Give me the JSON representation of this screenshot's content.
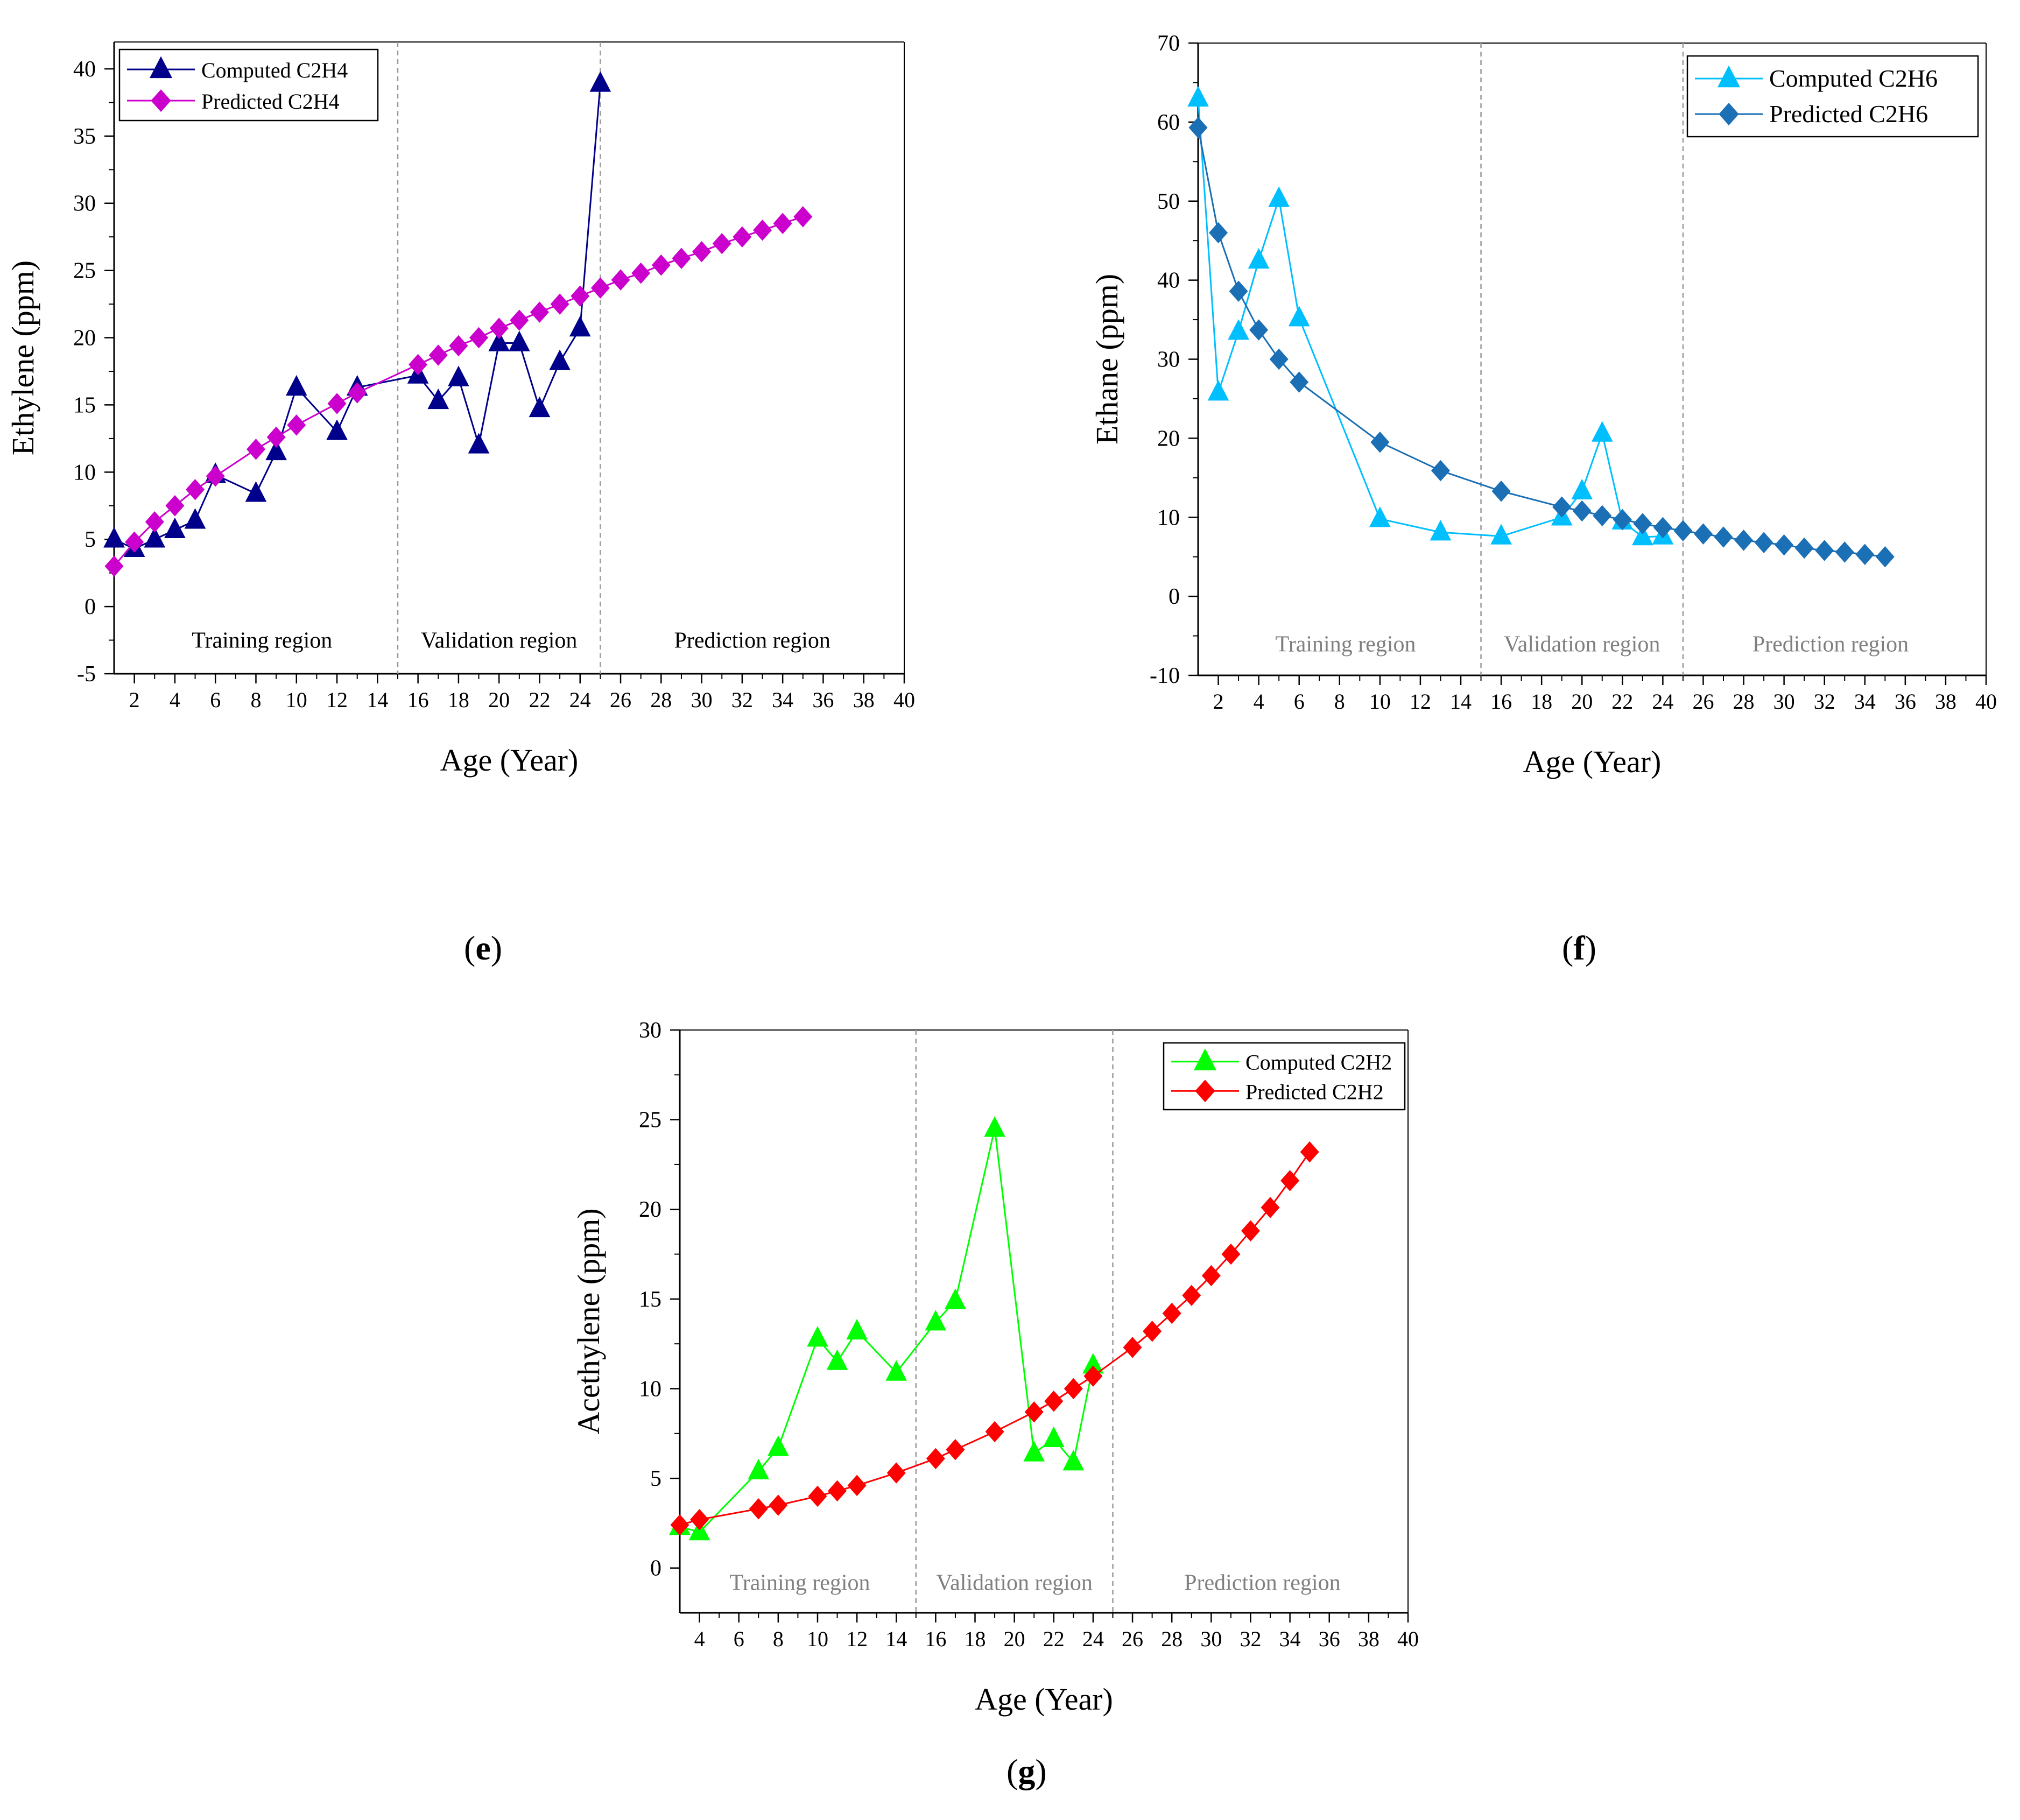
{
  "panel_labels": [
    "e",
    "f",
    "g"
  ],
  "chart_data": [
    {
      "type": "line",
      "panel": "e",
      "xlabel": "Age (Year)",
      "ylabel": "Ethylene (ppm)",
      "xlim": [
        1,
        40
      ],
      "ylim": [
        -5,
        42
      ],
      "xticks": [
        2,
        4,
        6,
        8,
        10,
        12,
        14,
        16,
        18,
        20,
        22,
        24,
        26,
        28,
        30,
        32,
        34,
        36,
        38,
        40
      ],
      "yticks": [
        -5,
        0,
        5,
        10,
        15,
        20,
        25,
        30,
        35,
        40
      ],
      "grid": false,
      "legend_position": "top-left",
      "region_boundaries": [
        15,
        25
      ],
      "regions": [
        {
          "label": "Training region",
          "x_center": 8.3,
          "y": -2.5
        },
        {
          "label": "Validation region",
          "x_center": 20,
          "y": -2.5
        },
        {
          "label": "Prediction region",
          "x_center": 32.5,
          "y": -2.5
        }
      ],
      "series": [
        {
          "name": "Computed C2H4",
          "color": "#00008b",
          "marker": "triangle",
          "x": [
            1,
            2,
            3,
            4,
            5,
            6,
            8,
            9,
            10,
            12,
            13,
            16,
            17,
            18,
            19,
            20,
            21,
            22,
            23,
            24,
            25
          ],
          "y": [
            5,
            4.3,
            5,
            5.7,
            6.4,
            9.8,
            8.4,
            11.5,
            16.3,
            13,
            16.3,
            17.2,
            15.3,
            17,
            12,
            19.6,
            19.6,
            14.7,
            18.2,
            20.7,
            38.9
          ]
        },
        {
          "name": "Predicted C2H4",
          "color": "#cc00cc",
          "marker": "diamond",
          "x": [
            1,
            2,
            3,
            4,
            5,
            6,
            8,
            9,
            10,
            12,
            13,
            16,
            17,
            18,
            19,
            20,
            21,
            22,
            23,
            24,
            25,
            26,
            27,
            28,
            29,
            30,
            31,
            32,
            33,
            34,
            35
          ],
          "y": [
            3,
            4.8,
            6.3,
            7.5,
            8.7,
            9.7,
            11.7,
            12.6,
            13.5,
            15.1,
            15.9,
            18,
            18.7,
            19.4,
            20,
            20.7,
            21.3,
            21.9,
            22.5,
            23.1,
            23.7,
            24.3,
            24.8,
            25.4,
            25.9,
            26.4,
            27,
            27.5,
            28,
            28.5,
            29
          ]
        }
      ]
    },
    {
      "type": "line",
      "panel": "f",
      "xlabel": "Age (Year)",
      "ylabel": "Ethane (ppm)",
      "xlim": [
        1,
        40
      ],
      "ylim": [
        -10,
        70
      ],
      "xticks": [
        2,
        4,
        6,
        8,
        10,
        12,
        14,
        16,
        18,
        20,
        22,
        24,
        26,
        28,
        30,
        32,
        34,
        36,
        38,
        40
      ],
      "yticks": [
        -10,
        0,
        10,
        20,
        30,
        40,
        50,
        60,
        70
      ],
      "grid": false,
      "legend_position": "top-right",
      "region_boundaries": [
        15,
        25
      ],
      "regions": [
        {
          "label": "Training region",
          "x_center": 8.3,
          "y": -6
        },
        {
          "label": "Validation region",
          "x_center": 20,
          "y": -6
        },
        {
          "label": "Prediction region",
          "x_center": 32.3,
          "y": -6
        }
      ],
      "series": [
        {
          "name": "Computed C2H6",
          "color": "#00bfff",
          "marker": "triangle",
          "x": [
            1,
            2,
            3,
            4,
            5,
            6,
            10,
            13,
            16,
            19,
            20,
            21,
            22,
            23,
            24
          ],
          "y": [
            63,
            25.8,
            33.5,
            42.5,
            50.3,
            35.2,
            9.8,
            8.1,
            7.6,
            10,
            13.3,
            20.6,
            9.5,
            7.5,
            7.6
          ]
        },
        {
          "name": "Predicted C2H6",
          "color": "#1a6fb5",
          "marker": "diamond",
          "x": [
            1,
            2,
            3,
            4,
            5,
            6,
            10,
            13,
            16,
            19,
            20,
            21,
            22,
            23,
            24,
            25,
            26,
            27,
            28,
            29,
            30,
            31,
            32,
            33,
            34,
            35
          ],
          "y": [
            59.3,
            46,
            38.6,
            33.7,
            30,
            27.1,
            19.5,
            15.9,
            13.3,
            11.3,
            10.8,
            10.2,
            9.7,
            9.2,
            8.7,
            8.3,
            7.9,
            7.5,
            7.1,
            6.8,
            6.5,
            6.1,
            5.8,
            5.6,
            5.3,
            5
          ]
        }
      ]
    },
    {
      "type": "line",
      "panel": "g",
      "xlabel": "Age (Year)",
      "ylabel": "Acethylene (ppm)",
      "xlim": [
        3,
        40
      ],
      "ylim": [
        -2.5,
        30
      ],
      "xticks": [
        4,
        6,
        8,
        10,
        12,
        14,
        16,
        18,
        20,
        22,
        24,
        26,
        28,
        30,
        32,
        34,
        36,
        38,
        40
      ],
      "yticks": [
        0,
        5,
        10,
        15,
        20,
        25,
        30
      ],
      "grid": false,
      "legend_position": "top-right",
      "region_boundaries": [
        15,
        25
      ],
      "regions": [
        {
          "label": "Training region",
          "x_center": 9.1,
          "y": -0.8
        },
        {
          "label": "Validation region",
          "x_center": 20,
          "y": -0.8
        },
        {
          "label": "Prediction region",
          "x_center": 32.6,
          "y": -0.8
        }
      ],
      "series": [
        {
          "name": "Computed C2H2",
          "color": "#00ff00",
          "marker": "triangle",
          "x": [
            3,
            4,
            7,
            8,
            10,
            11,
            12,
            14,
            16,
            17,
            19,
            21,
            22,
            23,
            24
          ],
          "y": [
            2.3,
            2,
            5.4,
            6.7,
            12.8,
            11.5,
            13.2,
            10.9,
            13.7,
            14.9,
            24.5,
            6.4,
            7.2,
            5.9,
            11.3
          ]
        },
        {
          "name": "Predicted C2H2",
          "color": "#ff0000",
          "marker": "diamond",
          "x": [
            3,
            4,
            7,
            8,
            10,
            11,
            12,
            14,
            16,
            17,
            19,
            21,
            22,
            23,
            24,
            26,
            27,
            28,
            29,
            30,
            31,
            32,
            33,
            34,
            35
          ],
          "y": [
            2.4,
            2.7,
            3.3,
            3.5,
            4,
            4.3,
            4.6,
            5.3,
            6.1,
            6.6,
            7.6,
            8.7,
            9.3,
            10,
            10.7,
            12.3,
            13.2,
            14.2,
            15.2,
            16.3,
            17.5,
            18.8,
            20.1,
            21.6,
            23.2
          ]
        }
      ]
    }
  ]
}
